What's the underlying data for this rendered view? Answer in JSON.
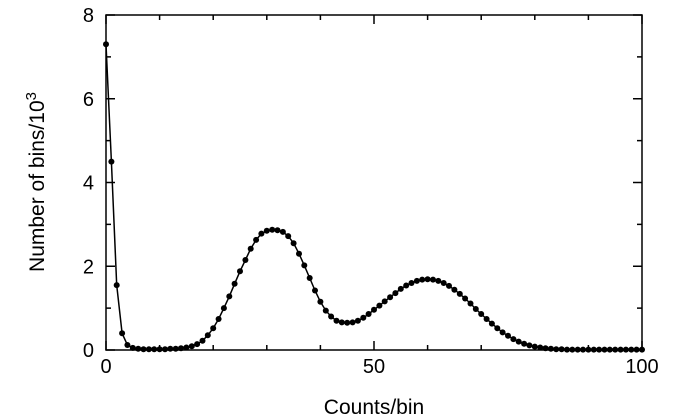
{
  "chart_data": {
    "type": "scatter",
    "xlabel": "Counts/bin",
    "ylabel": "Number of bins/10",
    "ylabel_superscript": "3",
    "xlim": [
      0,
      100
    ],
    "ylim": [
      0,
      8
    ],
    "x_ticks": [
      0,
      50,
      100
    ],
    "y_ticks": [
      0,
      2,
      4,
      6,
      8
    ],
    "grid": false,
    "legend": "none",
    "series": [
      {
        "style": "points-with-line",
        "color": "#000000",
        "x": [
          0,
          1,
          2,
          3,
          4,
          5,
          6,
          7,
          8,
          9,
          10,
          11,
          12,
          13,
          14,
          15,
          16,
          17,
          18,
          19,
          20,
          21,
          22,
          23,
          24,
          25,
          26,
          27,
          28,
          29,
          30,
          31,
          32,
          33,
          34,
          35,
          36,
          37,
          38,
          39,
          40,
          41,
          42,
          43,
          44,
          45,
          46,
          47,
          48,
          49,
          50,
          51,
          52,
          53,
          54,
          55,
          56,
          57,
          58,
          59,
          60,
          61,
          62,
          63,
          64,
          65,
          66,
          67,
          68,
          69,
          70,
          71,
          72,
          73,
          74,
          75,
          76,
          77,
          78,
          79,
          80,
          81,
          82,
          83,
          84,
          85,
          86,
          87,
          88,
          89,
          90,
          91,
          92,
          93,
          94,
          95,
          96,
          97,
          98,
          99,
          100
        ],
        "y": [
          7.3,
          4.5,
          1.55,
          0.4,
          0.12,
          0.05,
          0.03,
          0.02,
          0.02,
          0.02,
          0.02,
          0.02,
          0.03,
          0.03,
          0.04,
          0.06,
          0.09,
          0.14,
          0.22,
          0.35,
          0.52,
          0.74,
          1.0,
          1.28,
          1.58,
          1.88,
          2.15,
          2.42,
          2.63,
          2.78,
          2.85,
          2.87,
          2.86,
          2.82,
          2.72,
          2.55,
          2.3,
          2.02,
          1.72,
          1.42,
          1.15,
          0.94,
          0.8,
          0.7,
          0.66,
          0.65,
          0.66,
          0.7,
          0.77,
          0.86,
          0.96,
          1.06,
          1.16,
          1.26,
          1.36,
          1.46,
          1.54,
          1.6,
          1.65,
          1.68,
          1.69,
          1.68,
          1.65,
          1.6,
          1.53,
          1.44,
          1.34,
          1.23,
          1.11,
          0.98,
          0.86,
          0.74,
          0.63,
          0.52,
          0.42,
          0.34,
          0.26,
          0.2,
          0.15,
          0.11,
          0.08,
          0.06,
          0.04,
          0.03,
          0.02,
          0.02,
          0.01,
          0.01,
          0.01,
          0.01,
          0.01,
          0.01,
          0.01,
          0.01,
          0.01,
          0.01,
          0.01,
          0.01,
          0.01,
          0.01,
          0.01
        ]
      }
    ]
  }
}
